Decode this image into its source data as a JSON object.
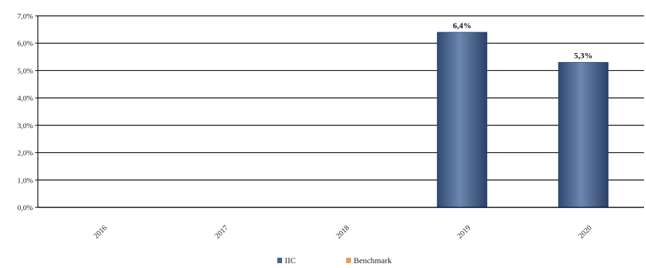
{
  "chart_data": {
    "type": "bar",
    "categories": [
      "2016",
      "2017",
      "2018",
      "2019",
      "2020"
    ],
    "series": [
      {
        "name": "IIC",
        "color": "#4a6590",
        "values": [
          null,
          null,
          null,
          6.4,
          5.3
        ],
        "data_labels": [
          "",
          "",
          "",
          "6,4%",
          "5,3%"
        ]
      },
      {
        "name": "Benchmark",
        "color": "#e0a060",
        "values": [
          null,
          null,
          null,
          null,
          null
        ],
        "data_labels": [
          "",
          "",
          "",
          "",
          ""
        ]
      }
    ],
    "y_ticks": [
      0,
      1,
      2,
      3,
      4,
      5,
      6,
      7
    ],
    "y_tick_labels": [
      "0,0%",
      "1,0%",
      "2,0%",
      "3,0%",
      "4,0%",
      "5,0%",
      "6,0%",
      "7,0%"
    ],
    "ylim": [
      0,
      7
    ],
    "grid": true,
    "legend_position": "bottom-center",
    "title": "",
    "xlabel": "",
    "ylabel": ""
  }
}
